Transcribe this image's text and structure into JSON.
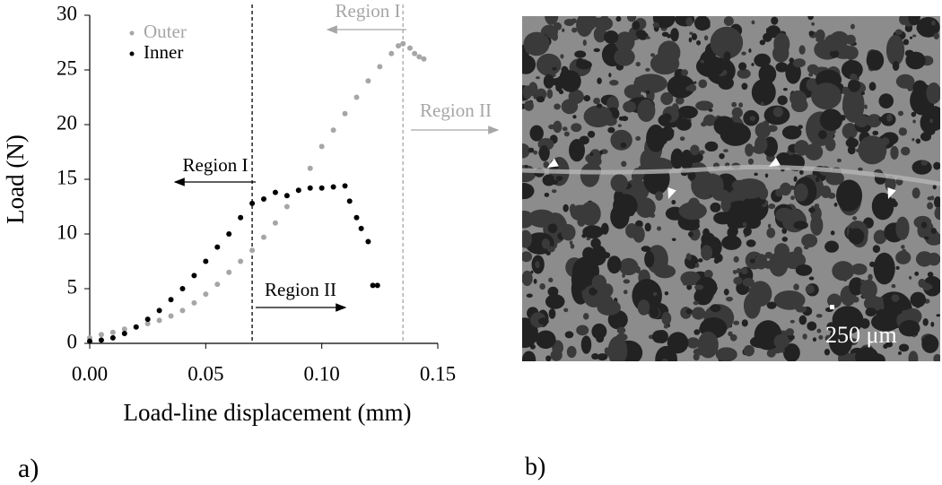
{
  "chart_data": {
    "type": "scatter",
    "panel_label": "a)",
    "xlabel": "Load-line displacement (mm)",
    "ylabel": "Load (N)",
    "xlim": [
      0,
      0.15
    ],
    "ylim": [
      0,
      30
    ],
    "xticks": [
      {
        "value": 0,
        "label": "0.00"
      },
      {
        "value": 0.05,
        "label": "0.05"
      },
      {
        "value": 0.1,
        "label": "0.10"
      },
      {
        "value": 0.15,
        "label": "0.15"
      }
    ],
    "yticks": [
      0,
      5,
      10,
      15,
      20,
      25,
      30
    ],
    "legend": "upper left",
    "series": [
      {
        "name": "Outer",
        "color": "#a6a6a6",
        "x": [
          0,
          0.005,
          0.01,
          0.015,
          0.02,
          0.025,
          0.03,
          0.035,
          0.04,
          0.045,
          0.05,
          0.055,
          0.06,
          0.065,
          0.07,
          0.075,
          0.08,
          0.085,
          0.09,
          0.095,
          0.1,
          0.105,
          0.11,
          0.115,
          0.12,
          0.125,
          0.13,
          0.133,
          0.135,
          0.138,
          0.14,
          0.142,
          0.144
        ],
        "values": [
          0.5,
          0.8,
          1.0,
          1.3,
          1.5,
          1.8,
          2.1,
          2.5,
          3.0,
          3.7,
          4.5,
          5.4,
          6.5,
          7.5,
          8.5,
          9.7,
          11,
          12.5,
          14,
          16,
          18,
          19.5,
          21,
          22.5,
          24,
          25.3,
          26.5,
          27.2,
          27.4,
          27,
          26.5,
          26.2,
          26
        ]
      },
      {
        "name": "Inner",
        "color": "#000000",
        "x": [
          0,
          0.005,
          0.01,
          0.015,
          0.02,
          0.025,
          0.03,
          0.035,
          0.04,
          0.045,
          0.05,
          0.055,
          0.06,
          0.065,
          0.07,
          0.075,
          0.08,
          0.085,
          0.09,
          0.095,
          0.1,
          0.105,
          0.11,
          0.112,
          0.115,
          0.117,
          0.12,
          0.122,
          0.124
        ],
        "values": [
          0.2,
          0.3,
          0.5,
          0.9,
          1.5,
          2.2,
          3.0,
          4.0,
          5.0,
          6.2,
          7.5,
          8.8,
          10,
          11.5,
          12.8,
          13.2,
          13.8,
          13.5,
          14,
          14.2,
          14.2,
          14.3,
          14.4,
          13,
          11.5,
          10.5,
          9.3,
          5.3,
          5.3
        ]
      }
    ],
    "vlines": [
      {
        "x": 0.07,
        "color": "#000000"
      },
      {
        "x": 0.135,
        "color": "#a6a6a6"
      }
    ],
    "annotations": [
      {
        "text": "Region I",
        "color": "#000000"
      },
      {
        "text": "Region II",
        "color": "#000000"
      },
      {
        "text": "Region I",
        "color": "#a6a6a6"
      },
      {
        "text": "Region II",
        "color": "#a6a6a6"
      }
    ]
  },
  "image": {
    "panel_label": "b)",
    "scale_label": "250 μm"
  }
}
